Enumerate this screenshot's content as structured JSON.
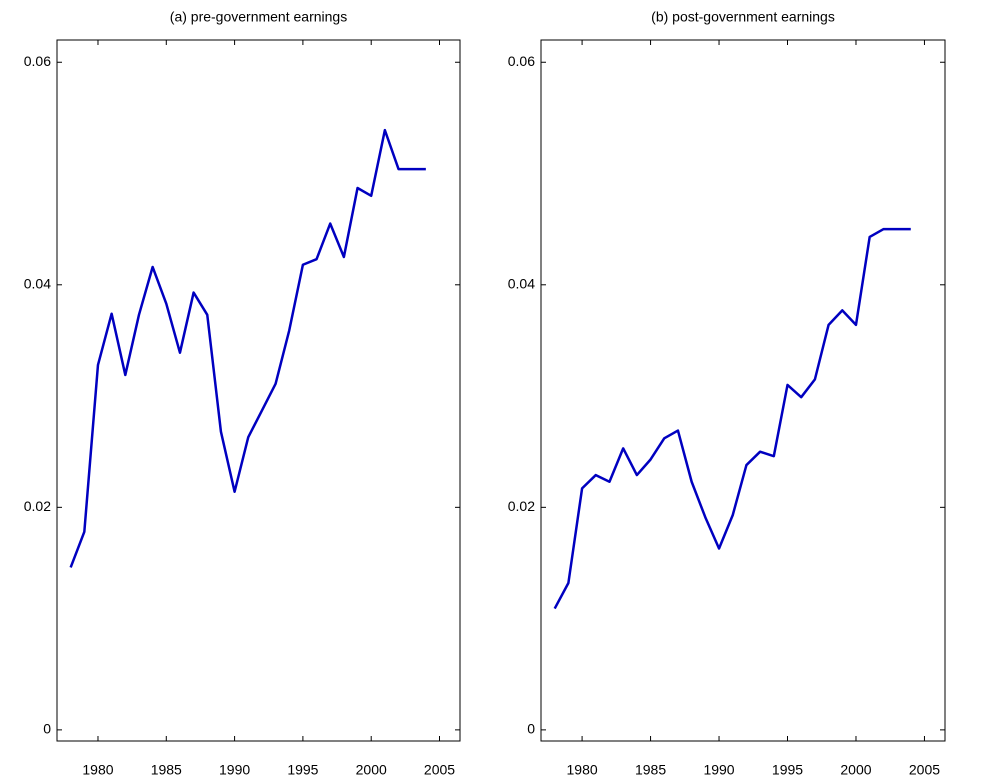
{
  "chart_data": [
    {
      "type": "line",
      "title": "(a) pre-government earnings",
      "x": [
        1978,
        1979,
        1980,
        1981,
        1982,
        1983,
        1984,
        1985,
        1986,
        1987,
        1988,
        1989,
        1990,
        1991,
        1992,
        1993,
        1994,
        1995,
        1996,
        1997,
        1998,
        1999,
        2000,
        2001,
        2002,
        2003,
        2004
      ],
      "series": [
        {
          "color": "#0000c0",
          "values": [
            0.0146,
            0.0178,
            0.0328,
            0.0374,
            0.0319,
            0.0373,
            0.0416,
            0.0383,
            0.0339,
            0.0393,
            0.0373,
            0.0268,
            0.0214,
            0.0263,
            0.0287,
            0.0311,
            0.0359,
            0.0418,
            0.0423,
            0.0455,
            0.0425,
            0.0487,
            0.048,
            0.0539,
            0.0504,
            0.0504,
            0.0504
          ]
        }
      ],
      "xlim": [
        1977,
        2006.5
      ],
      "xticks": [
        1980,
        1985,
        1990,
        1995,
        2000,
        2005
      ],
      "ylim": [
        -0.001,
        0.062
      ],
      "yticks": [
        0,
        0.02,
        0.04,
        0.06
      ]
    },
    {
      "type": "line",
      "title": "(b) post-government earnings",
      "x": [
        1978,
        1979,
        1980,
        1981,
        1982,
        1983,
        1984,
        1985,
        1986,
        1987,
        1988,
        1989,
        1990,
        1991,
        1992,
        1993,
        1994,
        1995,
        1996,
        1997,
        1998,
        1999,
        2000,
        2001,
        2002,
        2003,
        2004
      ],
      "series": [
        {
          "color": "#0000c0",
          "values": [
            0.0109,
            0.0132,
            0.0217,
            0.0229,
            0.0223,
            0.0253,
            0.0229,
            0.0243,
            0.0262,
            0.0269,
            0.0223,
            0.0191,
            0.0163,
            0.0193,
            0.0238,
            0.025,
            0.0246,
            0.031,
            0.0299,
            0.0315,
            0.0364,
            0.0377,
            0.0364,
            0.0443,
            0.045,
            0.045,
            0.045
          ]
        }
      ],
      "xlim": [
        1977,
        2006.5
      ],
      "xticks": [
        1980,
        1985,
        1990,
        1995,
        2000,
        2005
      ],
      "ylim": [
        -0.001,
        0.062
      ],
      "yticks": [
        0,
        0.02,
        0.04,
        0.06
      ]
    }
  ]
}
